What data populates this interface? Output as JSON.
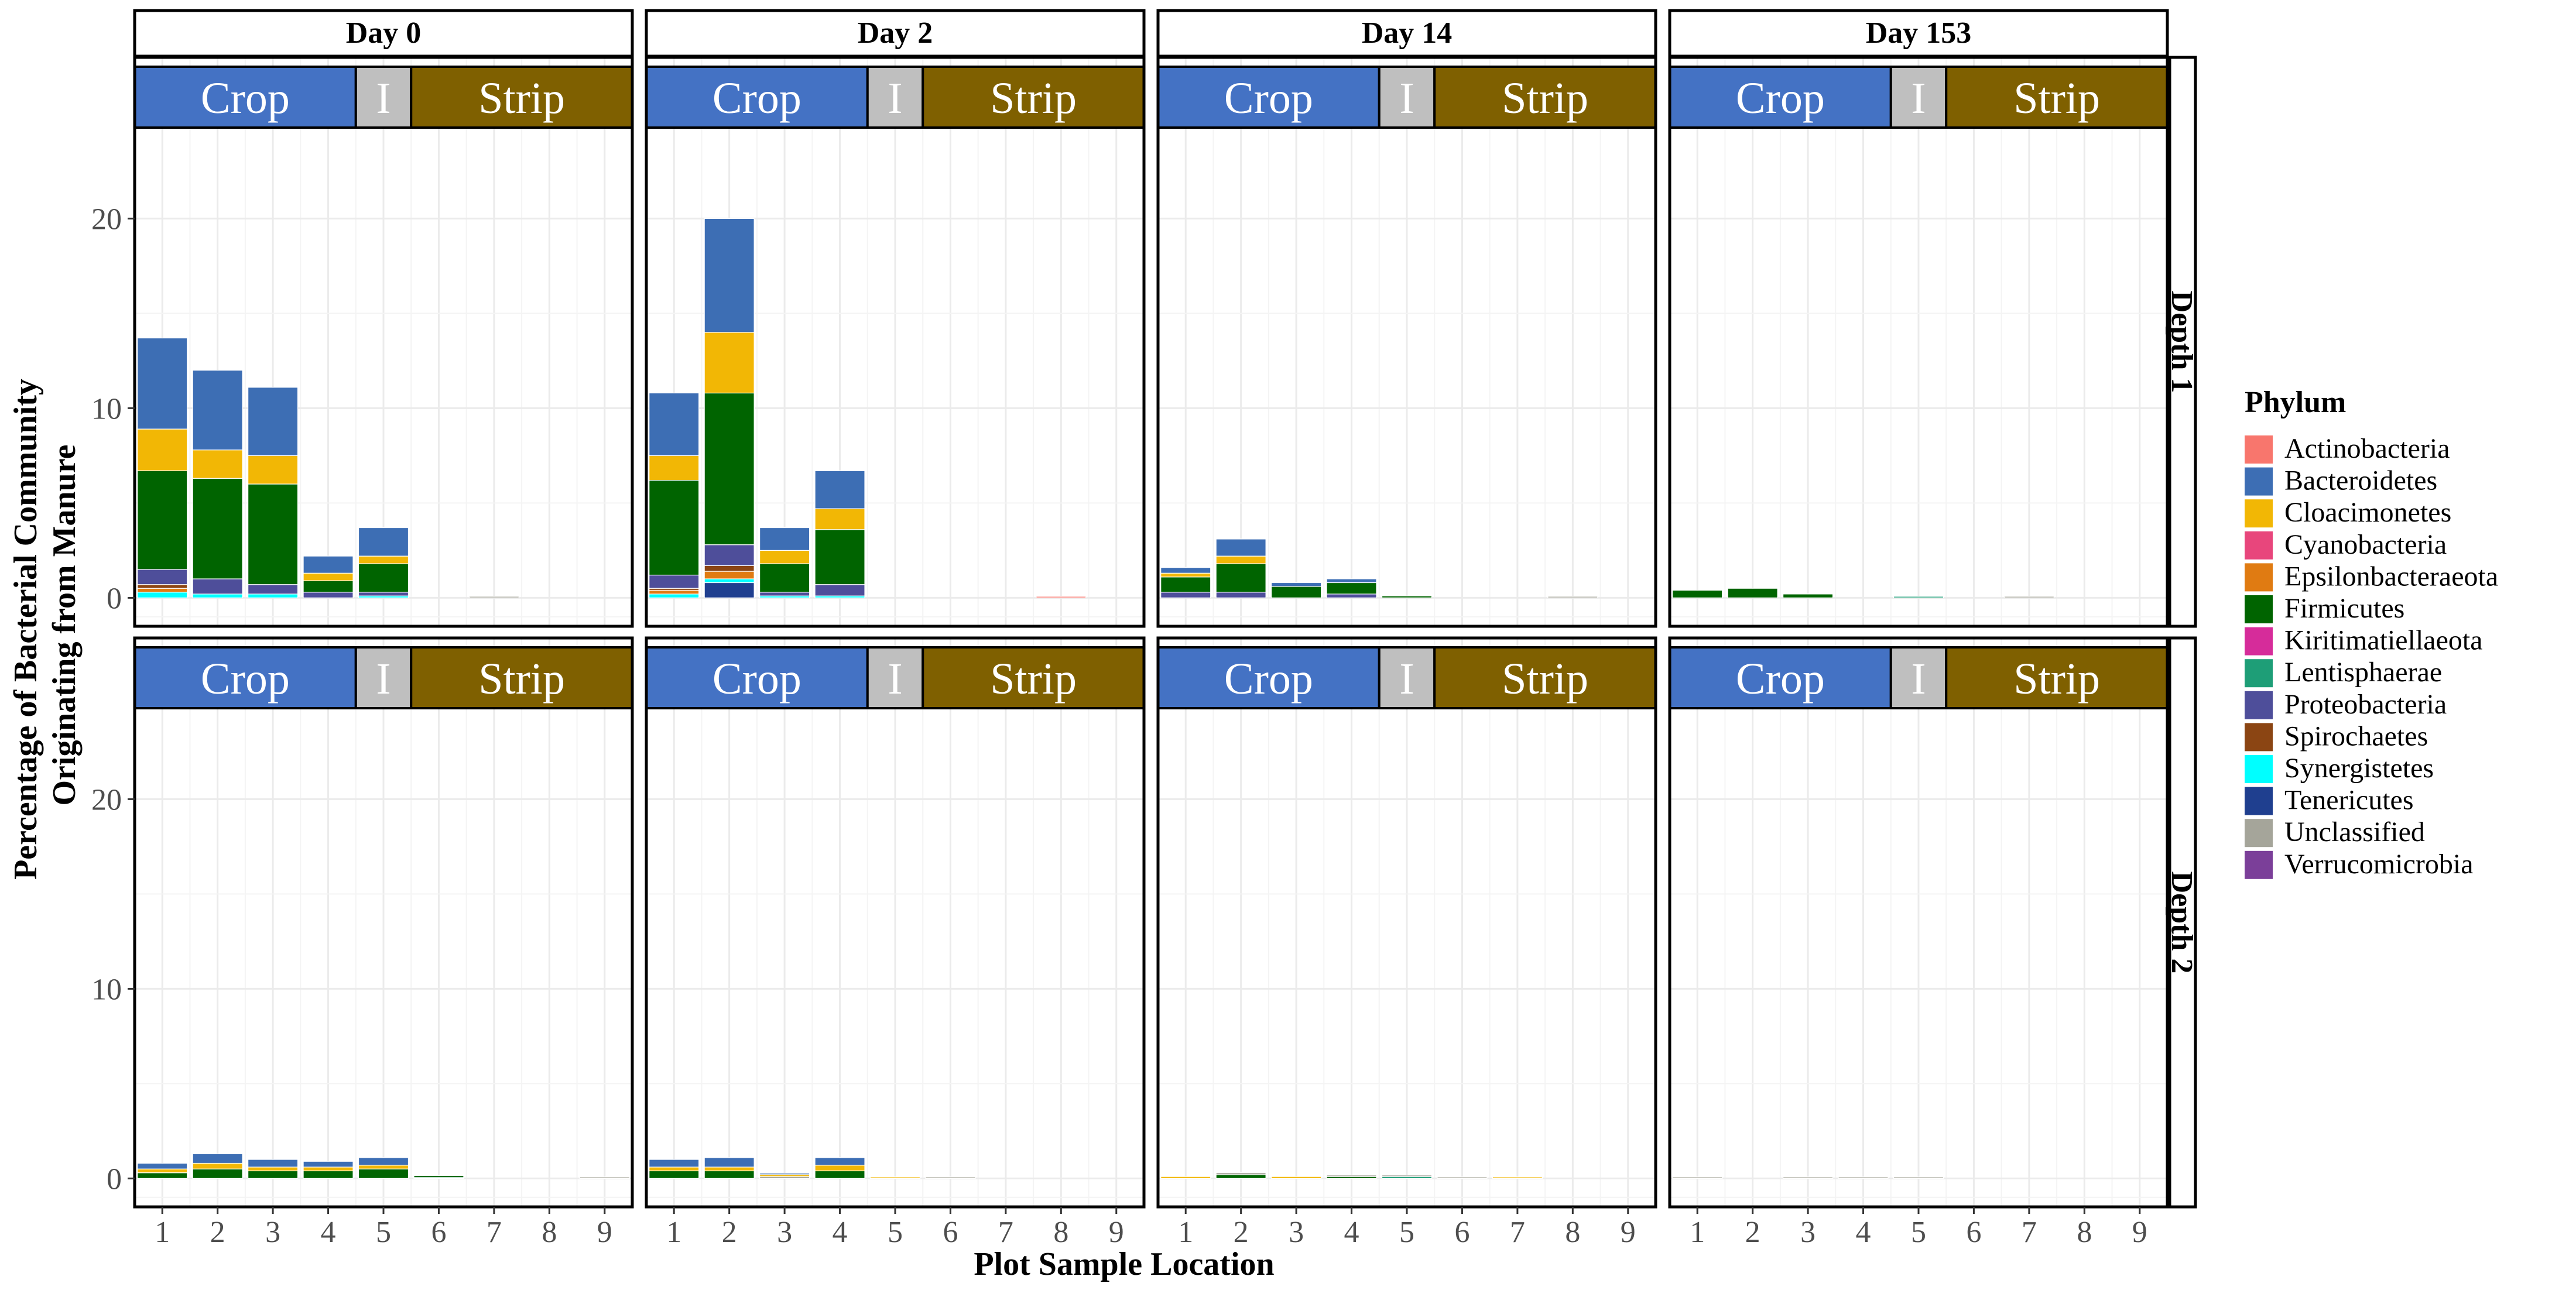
{
  "chart_data": {
    "type": "bar",
    "stacked": true,
    "facets": {
      "columns": [
        "Day 0",
        "Day 2",
        "Day 14",
        "Day 153"
      ],
      "rows": [
        "Depth 1",
        "Depth 2"
      ]
    },
    "x": [
      1,
      2,
      3,
      4,
      5,
      6,
      7,
      8,
      9
    ],
    "xlabel": "Plot Sample Location",
    "ylabel": "Percentage of Bacterial Community Originating from Manure",
    "ylabel_lines": [
      "Percentage of Bacterial Community",
      "Originating from Manure"
    ],
    "y_ticks": [
      0,
      10,
      20
    ],
    "ylim": [
      -1.5,
      28.5
    ],
    "grid": true,
    "legend": {
      "title": "Phylum",
      "placement": "right",
      "entries": [
        {
          "name": "Actinobacteria",
          "color": "#F8766D"
        },
        {
          "name": "Bacteroidetes",
          "color": "#3D6EB4"
        },
        {
          "name": "Cloacimonetes",
          "color": "#F2B705"
        },
        {
          "name": "Cyanobacteria",
          "color": "#E8467C"
        },
        {
          "name": "Epsilonbacteraeota",
          "color": "#E07B12"
        },
        {
          "name": "Firmicutes",
          "color": "#006400"
        },
        {
          "name": "Kiritimatiellaeota",
          "color": "#D62C9A"
        },
        {
          "name": "Lentisphaerae",
          "color": "#1E9E77"
        },
        {
          "name": "Proteobacteria",
          "color": "#4E4E9A"
        },
        {
          "name": "Spirochaetes",
          "color": "#8B4513"
        },
        {
          "name": "Synergistetes",
          "color": "#00FFFF"
        },
        {
          "name": "Tenericutes",
          "color": "#1F3F8F"
        },
        {
          "name": "Unclassified",
          "color": "#A5A59A"
        },
        {
          "name": "Verrucomicrobia",
          "color": "#7B3F99"
        }
      ]
    },
    "region_band": [
      {
        "label": "Crop",
        "from": 0.5,
        "to": 4.5,
        "color": "#4472C4"
      },
      {
        "label": "I",
        "from": 4.5,
        "to": 5.5,
        "color": "#BFBFBF"
      },
      {
        "label": "Strip",
        "from": 5.5,
        "to": 9.5,
        "color": "#7F6000"
      }
    ],
    "panels": [
      {
        "day": "Day 0",
        "depth": "Depth 1",
        "bars": [
          {
            "x": 1,
            "stack": {
              "Synergistetes": 0.3,
              "Epsilonbacteraeota": 0.2,
              "Spirochaetes": 0.2,
              "Proteobacteria": 0.8,
              "Firmicutes": 5.2,
              "Cloacimonetes": 2.2,
              "Bacteroidetes": 4.8
            }
          },
          {
            "x": 2,
            "stack": {
              "Synergistetes": 0.2,
              "Proteobacteria": 0.8,
              "Firmicutes": 5.3,
              "Cloacimonetes": 1.5,
              "Bacteroidetes": 4.2
            }
          },
          {
            "x": 3,
            "stack": {
              "Synergistetes": 0.2,
              "Proteobacteria": 0.5,
              "Firmicutes": 5.3,
              "Cloacimonetes": 1.5,
              "Bacteroidetes": 3.6
            }
          },
          {
            "x": 4,
            "stack": {
              "Proteobacteria": 0.3,
              "Firmicutes": 0.6,
              "Cloacimonetes": 0.4,
              "Bacteroidetes": 0.9
            }
          },
          {
            "x": 5,
            "stack": {
              "Synergistetes": 0.1,
              "Proteobacteria": 0.2,
              "Firmicutes": 1.5,
              "Cloacimonetes": 0.4,
              "Bacteroidetes": 1.5
            }
          },
          {
            "x": 7,
            "stack": {
              "Unclassified": 0.05
            }
          }
        ]
      },
      {
        "day": "Day 2",
        "depth": "Depth 1",
        "bars": [
          {
            "x": 1,
            "stack": {
              "Synergistetes": 0.2,
              "Epsilonbacteraeota": 0.2,
              "Spirochaetes": 0.1,
              "Proteobacteria": 0.7,
              "Firmicutes": 5.0,
              "Cloacimonetes": 1.3,
              "Bacteroidetes": 3.3
            }
          },
          {
            "x": 2,
            "stack": {
              "Tenericutes": 0.8,
              "Synergistetes": 0.2,
              "Epsilonbacteraeota": 0.4,
              "Spirochaetes": 0.3,
              "Proteobacteria": 1.1,
              "Firmicutes": 8.0,
              "Cloacimonetes": 3.2,
              "Bacteroidetes": 6.0
            }
          },
          {
            "x": 3,
            "stack": {
              "Synergistetes": 0.1,
              "Proteobacteria": 0.2,
              "Firmicutes": 1.5,
              "Cloacimonetes": 0.7,
              "Bacteroidetes": 1.2
            }
          },
          {
            "x": 4,
            "stack": {
              "Synergistetes": 0.1,
              "Proteobacteria": 0.6,
              "Firmicutes": 2.9,
              "Cloacimonetes": 1.1,
              "Bacteroidetes": 2.0
            }
          },
          {
            "x": 8,
            "stack": {
              "Actinobacteria": 0.05
            }
          }
        ]
      },
      {
        "day": "Day 14",
        "depth": "Depth 1",
        "bars": [
          {
            "x": 1,
            "stack": {
              "Proteobacteria": 0.3,
              "Firmicutes": 0.8,
              "Cloacimonetes": 0.2,
              "Bacteroidetes": 0.3
            }
          },
          {
            "x": 2,
            "stack": {
              "Proteobacteria": 0.3,
              "Firmicutes": 1.5,
              "Cloacimonetes": 0.4,
              "Bacteroidetes": 0.9
            }
          },
          {
            "x": 3,
            "stack": {
              "Firmicutes": 0.6,
              "Bacteroidetes": 0.2
            }
          },
          {
            "x": 4,
            "stack": {
              "Proteobacteria": 0.2,
              "Firmicutes": 0.6,
              "Bacteroidetes": 0.2
            }
          },
          {
            "x": 5,
            "stack": {
              "Firmicutes": 0.1
            }
          },
          {
            "x": 8,
            "stack": {
              "Unclassified": 0.03
            }
          }
        ]
      },
      {
        "day": "Day 153",
        "depth": "Depth 1",
        "bars": [
          {
            "x": 1,
            "stack": {
              "Firmicutes": 0.4
            }
          },
          {
            "x": 2,
            "stack": {
              "Firmicutes": 0.5
            }
          },
          {
            "x": 3,
            "stack": {
              "Firmicutes": 0.2
            }
          },
          {
            "x": 5,
            "stack": {
              "Lentisphaerae": 0.05
            }
          },
          {
            "x": 7,
            "stack": {
              "Unclassified": 0.03
            }
          }
        ]
      },
      {
        "day": "Day 0",
        "depth": "Depth 2",
        "bars": [
          {
            "x": 1,
            "stack": {
              "Firmicutes": 0.3,
              "Cloacimonetes": 0.2,
              "Bacteroidetes": 0.3
            }
          },
          {
            "x": 2,
            "stack": {
              "Firmicutes": 0.5,
              "Cloacimonetes": 0.3,
              "Bacteroidetes": 0.5
            }
          },
          {
            "x": 3,
            "stack": {
              "Firmicutes": 0.4,
              "Cloacimonetes": 0.2,
              "Bacteroidetes": 0.4
            }
          },
          {
            "x": 4,
            "stack": {
              "Firmicutes": 0.4,
              "Cloacimonetes": 0.2,
              "Bacteroidetes": 0.3
            }
          },
          {
            "x": 5,
            "stack": {
              "Firmicutes": 0.5,
              "Cloacimonetes": 0.2,
              "Bacteroidetes": 0.4
            }
          },
          {
            "x": 6,
            "stack": {
              "Firmicutes": 0.1,
              "Lentisphaerae": 0.05
            }
          },
          {
            "x": 9,
            "stack": {
              "Unclassified": 0.03
            }
          }
        ]
      },
      {
        "day": "Day 2",
        "depth": "Depth 2",
        "bars": [
          {
            "x": 1,
            "stack": {
              "Firmicutes": 0.4,
              "Cloacimonetes": 0.2,
              "Bacteroidetes": 0.4
            }
          },
          {
            "x": 2,
            "stack": {
              "Firmicutes": 0.4,
              "Cloacimonetes": 0.2,
              "Bacteroidetes": 0.5
            }
          },
          {
            "x": 3,
            "stack": {
              "Cloacimonetes": 0.1,
              "Unclassified": 0.1,
              "Bacteroidetes": 0.05
            }
          },
          {
            "x": 4,
            "stack": {
              "Firmicutes": 0.4,
              "Cloacimonetes": 0.3,
              "Bacteroidetes": 0.4
            }
          },
          {
            "x": 5,
            "stack": {
              "Cloacimonetes": 0.05
            }
          },
          {
            "x": 6,
            "stack": {
              "Unclassified": 0.03
            }
          }
        ]
      },
      {
        "day": "Day 14",
        "depth": "Depth 2",
        "bars": [
          {
            "x": 1,
            "stack": {
              "Cloacimonetes": 0.1
            }
          },
          {
            "x": 2,
            "stack": {
              "Firmicutes": 0.2,
              "Unclassified": 0.1
            }
          },
          {
            "x": 3,
            "stack": {
              "Cloacimonetes": 0.1
            }
          },
          {
            "x": 4,
            "stack": {
              "Firmicutes": 0.1,
              "Unclassified": 0.05
            }
          },
          {
            "x": 5,
            "stack": {
              "Lentisphaerae": 0.1,
              "Unclassified": 0.05
            }
          },
          {
            "x": 6,
            "stack": {
              "Unclassified": 0.03
            }
          },
          {
            "x": 7,
            "stack": {
              "Cloacimonetes": 0.03
            }
          }
        ]
      },
      {
        "day": "Day 153",
        "depth": "Depth 2",
        "bars": [
          {
            "x": 1,
            "stack": {
              "Unclassified": 0.03
            }
          },
          {
            "x": 3,
            "stack": {
              "Unclassified": 0.03
            }
          },
          {
            "x": 4,
            "stack": {
              "Unclassified": 0.03
            }
          },
          {
            "x": 5,
            "stack": {
              "Unclassified": 0.03
            }
          }
        ]
      }
    ]
  }
}
